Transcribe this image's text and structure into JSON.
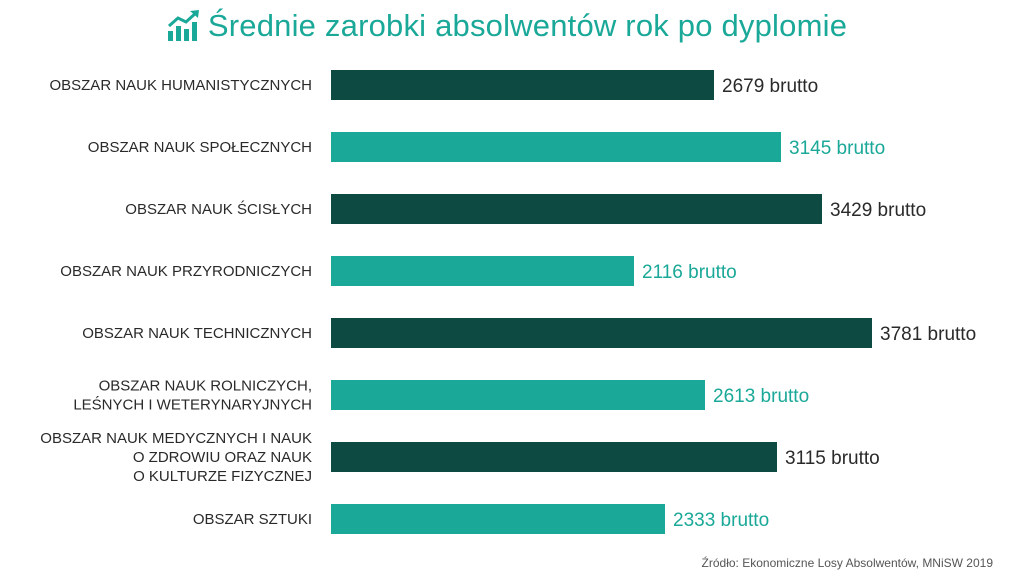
{
  "title": "Średnie zarobki absolwentów rok po dyplomie",
  "source": "Źródło: Ekonomiczne Losy Absolwentów, MNiSW 2019",
  "icon": "growth-chart-icon",
  "colors": {
    "dark": "#0c4a42",
    "light": "#1aa898",
    "text": "#2a2a2a",
    "title": "#1aa898"
  },
  "chart_data": {
    "type": "bar",
    "orientation": "horizontal",
    "title": "Średnie zarobki absolwentów rok po dyplomie",
    "value_suffix": "brutto",
    "categories": [
      [
        "OBSZAR NAUK HUMANISTYCZNYCH"
      ],
      [
        "OBSZAR NAUK SPOŁECZNYCH"
      ],
      [
        "OBSZAR NAUK ŚCISŁYCH"
      ],
      [
        "OBSZAR NAUK PRZYRODNICZYCH"
      ],
      [
        "OBSZAR NAUK TECHNICZNYCH"
      ],
      [
        "OBSZAR NAUK ROLNICZYCH,",
        "LEŚNYCH I WETERYNARYJNYCH"
      ],
      [
        "OBSZAR NAUK MEDYCZNYCH I NAUK",
        "O ZDROWIU ORAZ NAUK",
        "O KULTURZE FIZYCZNEJ"
      ],
      [
        "OBSZAR SZTUKI"
      ]
    ],
    "values": [
      2679,
      3145,
      3429,
      2116,
      3781,
      2613,
      3115,
      2333
    ],
    "value_labels": [
      "2679 brutto",
      "3145 brutto",
      "3429 brutto",
      "2116 brutto",
      "3781 brutto",
      "2613 brutto",
      "3115 brutto",
      "2333 brutto"
    ],
    "bar_colors": [
      "#0c4a42",
      "#1aa898",
      "#0c4a42",
      "#1aa898",
      "#0c4a42",
      "#1aa898",
      "#0c4a42",
      "#1aa898"
    ],
    "xlim": [
      0,
      3781
    ],
    "grid": false,
    "legend": "none"
  }
}
